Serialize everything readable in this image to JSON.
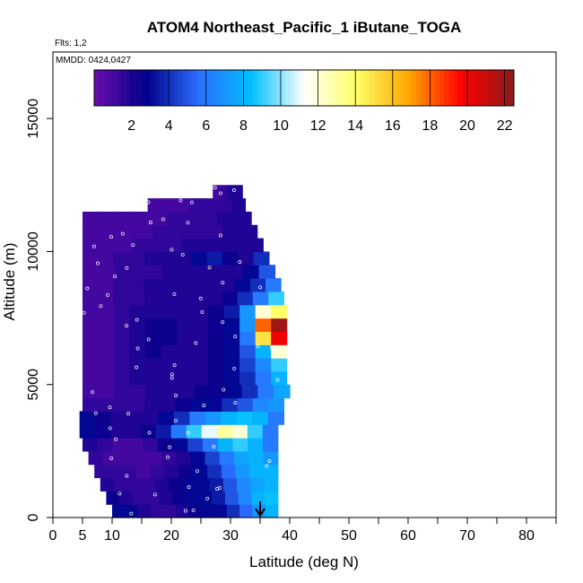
{
  "chart_data": {
    "type": "heatmap",
    "title": "ATOM4 Northeast_Pacific_1 iButane_TOGA",
    "flights_label": "Flts: 1,2",
    "dates_label": "MMDD: 0424,0427",
    "xlabel": "Latitude (deg N)",
    "ylabel": "Altitude (m)",
    "xlim": [
      0,
      85
    ],
    "ylim": [
      0,
      17500
    ],
    "x_ticks": [
      0,
      5,
      10,
      20,
      30,
      40,
      50,
      60,
      70,
      80
    ],
    "y_ticks": [
      0,
      5000,
      10000,
      15000
    ],
    "colorbar": {
      "range": [
        0,
        22.5
      ],
      "ticks": [
        2,
        4,
        6,
        8,
        10,
        12,
        14,
        16,
        18,
        20,
        22
      ],
      "palette": [
        "#6a0dad",
        "#00008b",
        "#2b6fff",
        "#00bfff",
        "#ffffff",
        "#ffff66",
        "#ffa500",
        "#ff0000",
        "#8b1a1a"
      ]
    },
    "grid": false,
    "marker": {
      "latitude": 35,
      "description": "arrow"
    },
    "rows": [
      {
        "alt": 250,
        "lat_min": 10,
        "lat_max": 38,
        "values": [
          3,
          3,
          2,
          1.5,
          1.5,
          2,
          2.5,
          3,
          3,
          4,
          5.5,
          7,
          8
        ]
      },
      {
        "alt": 750,
        "lat_min": 9,
        "lat_max": 38,
        "values": [
          2.5,
          2,
          1.5,
          1.5,
          2,
          2.5,
          3,
          3,
          3.5,
          5,
          6.5,
          8,
          8.5
        ]
      },
      {
        "alt": 1250,
        "lat_min": 8,
        "lat_max": 38,
        "values": [
          2,
          1.5,
          1.5,
          1.5,
          2,
          2.5,
          3,
          3,
          3.5,
          5,
          6.5,
          7.5,
          8
        ]
      },
      {
        "alt": 1750,
        "lat_min": 7,
        "lat_max": 38,
        "values": [
          1.5,
          1.5,
          1.5,
          1,
          1.5,
          2,
          2.5,
          3,
          4,
          5.5,
          7,
          8,
          8
        ]
      },
      {
        "alt": 2250,
        "lat_min": 6,
        "lat_max": 38,
        "values": [
          1.5,
          1,
          1,
          1,
          1,
          1.5,
          2,
          3,
          4.5,
          6,
          7.5,
          8,
          7
        ]
      },
      {
        "alt": 2750,
        "lat_min": 5,
        "lat_max": 38,
        "values": [
          2,
          1.5,
          1,
          1,
          1.5,
          2.5,
          3,
          4.5,
          6,
          8,
          9,
          8,
          6
        ]
      },
      {
        "alt": 3250,
        "lat_min": 4.5,
        "lat_max": 38,
        "values": [
          3,
          2.5,
          2,
          2,
          2.5,
          3.5,
          6,
          9,
          11,
          13,
          12,
          9,
          6
        ]
      },
      {
        "alt": 3750,
        "lat_min": 4.5,
        "lat_max": 39,
        "values": [
          3,
          2.5,
          2,
          2,
          2,
          3,
          4,
          6,
          7,
          8,
          8.5,
          8,
          6
        ]
      },
      {
        "alt": 4250,
        "lat_min": 5,
        "lat_max": 39,
        "values": [
          1.5,
          1.5,
          1.5,
          1.5,
          2,
          2,
          2.5,
          3,
          3,
          4,
          5,
          6.5,
          7
        ]
      },
      {
        "alt": 4750,
        "lat_min": 5,
        "lat_max": 40,
        "values": [
          1,
          1,
          1.5,
          1.5,
          2,
          2,
          2,
          2.5,
          2.5,
          3,
          4,
          6,
          7.5
        ]
      },
      {
        "alt": 5250,
        "lat_min": 5,
        "lat_max": 39.5,
        "values": [
          1,
          1,
          1.5,
          2,
          2,
          2,
          2,
          2,
          2.5,
          3,
          4,
          6,
          8
        ]
      },
      {
        "alt": 5750,
        "lat_min": 5,
        "lat_max": 39.5,
        "values": [
          1,
          1,
          1.5,
          2,
          2,
          2,
          2,
          2,
          2.5,
          3,
          4.5,
          6.5,
          9
        ]
      },
      {
        "alt": 6250,
        "lat_min": 5,
        "lat_max": 39.5,
        "values": [
          1,
          1,
          1.5,
          2,
          2.5,
          2,
          2,
          2,
          2.5,
          3,
          5,
          8,
          12
        ]
      },
      {
        "alt": 6750,
        "lat_min": 5,
        "lat_max": 39.5,
        "values": [
          1,
          1,
          1.5,
          2,
          2.5,
          2.5,
          2,
          2,
          2.5,
          3,
          6,
          15,
          20
        ]
      },
      {
        "alt": 7250,
        "lat_min": 5,
        "lat_max": 39.5,
        "values": [
          1,
          1,
          1.5,
          2,
          2.5,
          2.5,
          2,
          2,
          2.5,
          3,
          7,
          18,
          22
        ]
      },
      {
        "alt": 7750,
        "lat_min": 5,
        "lat_max": 39.5,
        "values": [
          1,
          1,
          1.5,
          2,
          2,
          2,
          2,
          2,
          2.5,
          3.5,
          7,
          12,
          14
        ]
      },
      {
        "alt": 8250,
        "lat_min": 5,
        "lat_max": 39,
        "values": [
          1,
          1,
          1.5,
          1.5,
          2,
          2,
          2,
          2,
          2,
          2.5,
          4,
          6,
          9
        ]
      },
      {
        "alt": 8750,
        "lat_min": 5,
        "lat_max": 38.5,
        "values": [
          1,
          1,
          1.5,
          1.5,
          2,
          2,
          2,
          2,
          2,
          2,
          3,
          4,
          6
        ]
      },
      {
        "alt": 9250,
        "lat_min": 5,
        "lat_max": 37.5,
        "values": [
          1,
          1,
          1.5,
          1.5,
          1.5,
          2,
          2,
          2,
          2,
          2,
          3,
          5
        ]
      },
      {
        "alt": 9750,
        "lat_min": 5,
        "lat_max": 36.5,
        "values": [
          1,
          1,
          1.5,
          1.5,
          2,
          2,
          2,
          3,
          3.5,
          2.5,
          2,
          4
        ]
      },
      {
        "alt": 10250,
        "lat_min": 5,
        "lat_max": 35.5,
        "values": [
          1,
          1,
          1,
          1.5,
          1.5,
          1.5,
          2,
          2,
          2,
          2,
          2
        ]
      },
      {
        "alt": 10750,
        "lat_min": 5,
        "lat_max": 34.5,
        "values": [
          1,
          1,
          1,
          1,
          1.5,
          1.5,
          1.5,
          1.5,
          2,
          2
        ]
      },
      {
        "alt": 11250,
        "lat_min": 5,
        "lat_max": 33.5,
        "values": [
          1,
          1,
          1,
          1,
          1,
          1.5,
          1.5,
          1.5,
          2,
          2
        ]
      },
      {
        "alt": 11750,
        "lat_min": 16,
        "lat_max": 32.5,
        "values": [
          1,
          1,
          1,
          1.5,
          1.5,
          1.5,
          2
        ]
      },
      {
        "alt": 12250,
        "lat_min": 27,
        "lat_max": 32,
        "values": [
          1,
          1.5,
          2,
          2
        ]
      }
    ]
  }
}
